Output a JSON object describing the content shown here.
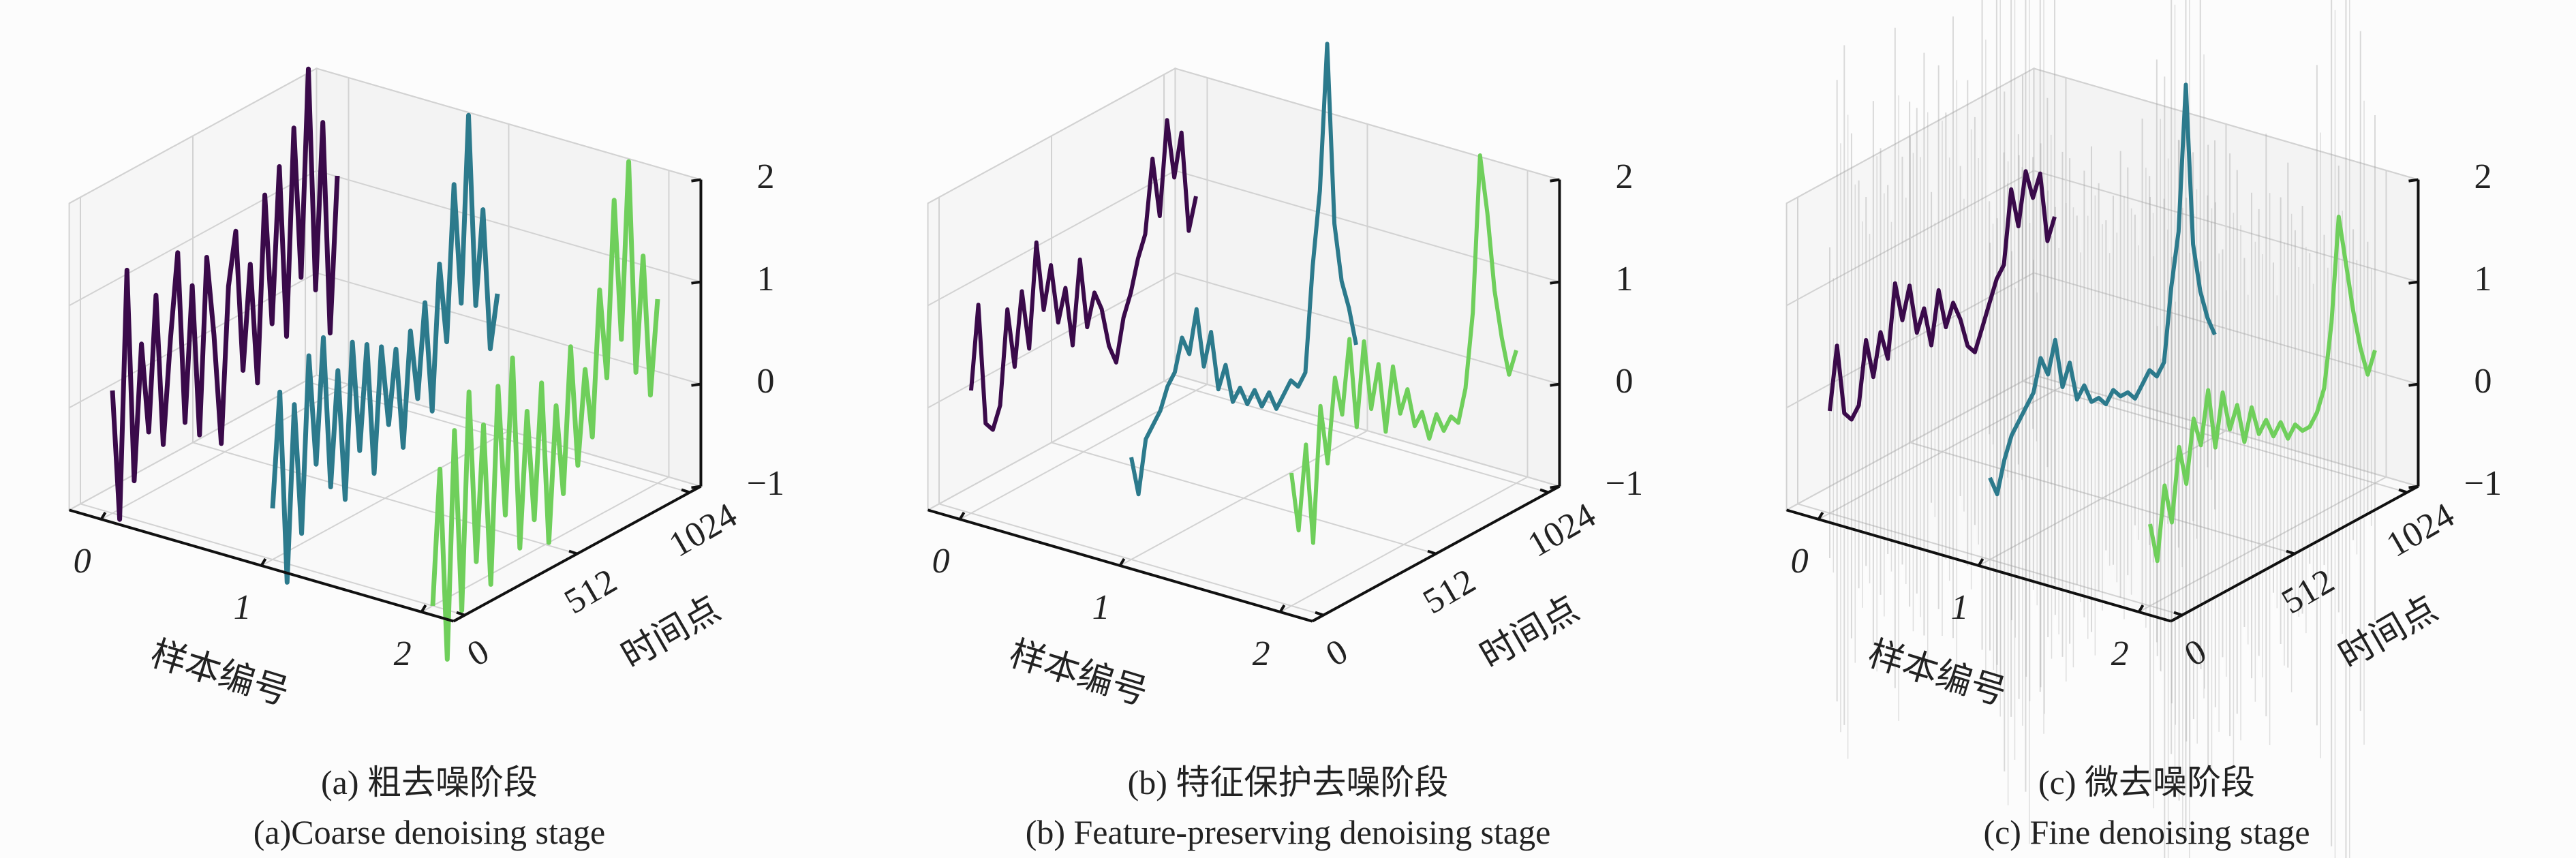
{
  "colors": {
    "sample0": "#3a0a4a",
    "sample1": "#2c7a8c",
    "sample2": "#6fcf5b",
    "noisy_overlay": "#9a9a9a",
    "grid": "#d2d2d2",
    "axis": "#111111"
  },
  "chart_data": [
    {
      "type": "line3d",
      "caption_zh": "(a) 粗去噪阶段",
      "caption_en": "(a)Coarse denoising stage",
      "xlabel": "样本编号",
      "ylabel": "时间点",
      "xticks": [
        "0",
        "1",
        "2"
      ],
      "yticks": [
        "0",
        "512",
        "1024"
      ],
      "zticks": [
        "2",
        "1",
        "0",
        "−1"
      ],
      "xlim": [
        -0.2,
        2.2
      ],
      "ylim": [
        -51,
        1075
      ],
      "zlim": [
        -1,
        2
      ],
      "grid": true,
      "t_range": [
        0,
        1024
      ],
      "series": [
        {
          "sample": 0,
          "values": [
            0.2,
            -1.1,
            1.3,
            -0.8,
            0.5,
            -0.4,
            0.9,
            -0.6,
            0.4,
            1.2,
            -0.5,
            0.8,
            -0.7,
            1.0,
            0.2,
            -0.9,
            0.6,
            1.1,
            -0.3,
            0.7,
            -0.5,
            1.3,
            0.0,
            1.5,
            -0.2,
            1.8,
            0.3,
            2.3,
            0.1,
            1.7,
            -0.4,
            1.1
          ]
        },
        {
          "sample": 1,
          "values": [
            -0.5,
            0.6,
            -1.3,
            0.4,
            -0.9,
            0.8,
            -0.3,
            0.9,
            -0.6,
            0.5,
            -0.8,
            0.7,
            -0.4,
            0.6,
            -0.7,
            0.5,
            -0.3,
            0.4,
            -0.6,
            0.5,
            -0.2,
            0.7,
            -0.4,
            1.0,
            0.2,
            1.7,
            0.5,
            2.3,
            0.4,
            1.3,
            -0.1,
            0.4
          ]
        },
        {
          "sample": 2,
          "values": [
            -1.0,
            0.3,
            -1.6,
            0.6,
            -1.2,
            0.9,
            -0.8,
            0.5,
            -1.1,
            0.8,
            -0.5,
            1.0,
            -0.9,
            0.4,
            -0.7,
            0.6,
            -1.0,
            0.3,
            -0.6,
            0.8,
            -0.4,
            0.5,
            -0.2,
            1.2,
            0.3,
            2.0,
            0.6,
            2.3,
            0.2,
            1.3,
            -0.1,
            0.8
          ]
        }
      ]
    },
    {
      "type": "line3d",
      "caption_zh": "(b) 特征保护去噪阶段",
      "caption_en": "(b) Feature-preserving denoising stage",
      "xlabel": "样本编号",
      "ylabel": "时间点",
      "xticks": [
        "0",
        "1",
        "2"
      ],
      "yticks": [
        "0",
        "512",
        "1024"
      ],
      "zticks": [
        "2",
        "1",
        "0",
        "−1"
      ],
      "xlim": [
        -0.2,
        2.2
      ],
      "ylim": [
        -51,
        1075
      ],
      "zlim": [
        -1,
        2
      ],
      "grid": true,
      "t_range": [
        0,
        1024
      ],
      "series": [
        {
          "sample": 0,
          "values": [
            0.2,
            1.0,
            -0.2,
            -0.3,
            -0.1,
            0.8,
            0.2,
            0.9,
            0.3,
            1.3,
            0.6,
            1.0,
            0.4,
            0.7,
            0.1,
            0.9,
            0.2,
            0.5,
            0.3,
            -0.1,
            -0.3,
            0.1,
            0.3,
            0.6,
            0.8,
            1.5,
            0.9,
            1.8,
            1.2,
            1.6,
            0.6,
            0.9
          ]
        },
        {
          "sample": 1,
          "values": [
            0.0,
            -0.4,
            0.1,
            0.2,
            0.3,
            0.5,
            0.6,
            0.9,
            0.7,
            1.1,
            0.5,
            0.8,
            0.2,
            0.4,
            0.0,
            0.1,
            -0.1,
            0.0,
            -0.2,
            -0.1,
            -0.3,
            -0.2,
            -0.1,
            -0.2,
            -0.1,
            0.9,
            1.6,
            3.0,
            1.2,
            0.6,
            0.3,
            -0.1
          ]
        },
        {
          "sample": 2,
          "values": [
            0.3,
            -0.3,
            0.5,
            -0.5,
            0.8,
            0.2,
            1.0,
            0.6,
            1.3,
            0.4,
            1.2,
            0.5,
            0.9,
            0.2,
            0.8,
            0.3,
            0.5,
            0.1,
            0.2,
            -0.1,
            0.1,
            -0.1,
            0.0,
            -0.1,
            0.2,
            0.9,
            2.4,
            1.8,
            1.0,
            0.5,
            0.1,
            0.3
          ]
        }
      ]
    },
    {
      "type": "line3d",
      "caption_zh": "(c) 微去噪阶段",
      "caption_en": "(c) Fine denoising stage",
      "xlabel": "样本编号",
      "ylabel": "时间点",
      "xticks": [
        "0",
        "1",
        "2"
      ],
      "yticks": [
        "0",
        "512",
        "1024"
      ],
      "zticks": [
        "2",
        "1",
        "0",
        "−1"
      ],
      "xlim": [
        -0.2,
        2.2
      ],
      "ylim": [
        -51,
        1075
      ],
      "zlim": [
        -1,
        2
      ],
      "grid": true,
      "t_range": [
        0,
        1024
      ],
      "series": [
        {
          "sample": 0,
          "values": [
            0.0,
            0.6,
            -0.1,
            -0.2,
            -0.1,
            0.5,
            0.1,
            0.5,
            0.2,
            0.9,
            0.5,
            0.8,
            0.3,
            0.5,
            0.1,
            0.6,
            0.2,
            0.4,
            0.2,
            -0.1,
            -0.2,
            0.0,
            0.2,
            0.4,
            0.5,
            1.2,
            0.8,
            1.3,
            1.0,
            1.2,
            0.5,
            0.7
          ]
        },
        {
          "sample": 1,
          "values": [
            -0.2,
            -0.4,
            -0.1,
            0.1,
            0.2,
            0.3,
            0.4,
            0.7,
            0.5,
            0.8,
            0.3,
            0.5,
            0.1,
            0.2,
            0.0,
            0.0,
            -0.1,
            0.0,
            -0.1,
            -0.1,
            -0.2,
            -0.1,
            0.0,
            -0.1,
            0.0,
            0.7,
            1.2,
            2.6,
            1.0,
            0.5,
            0.2,
            0.0
          ]
        },
        {
          "sample": 2,
          "values": [
            -0.2,
            -0.6,
            0.1,
            -0.3,
            0.4,
            0.0,
            0.6,
            0.3,
            0.8,
            0.2,
            0.7,
            0.3,
            0.5,
            0.1,
            0.4,
            0.1,
            0.2,
            0.0,
            0.1,
            -0.1,
            0.0,
            -0.1,
            -0.1,
            0.0,
            0.2,
            0.8,
            1.8,
            1.3,
            0.8,
            0.4,
            0.1,
            0.3
          ]
        }
      ],
      "noisy_overlay": [
        {
          "sample": 0,
          "values": [
            0.4,
            -2.0,
            2.3,
            -1.4,
            0.9,
            -0.7,
            1.6,
            -1.1,
            0.7,
            2.2,
            -0.9,
            1.4,
            -1.3,
            1.8,
            0.4,
            -1.6,
            1.1,
            2.0,
            -0.5,
            1.3,
            -0.9,
            2.3,
            0.0,
            2.7,
            -0.4,
            3.2,
            0.5,
            4.1,
            0.2,
            3.1,
            -0.7,
            2.0
          ]
        },
        {
          "sample": 1,
          "values": [
            -0.9,
            1.1,
            -2.3,
            0.7,
            -1.6,
            1.4,
            -0.5,
            1.6,
            -1.1,
            0.9,
            -1.4,
            1.3,
            -0.7,
            1.1,
            -1.3,
            0.9,
            -0.5,
            0.7,
            -1.1,
            0.9,
            -0.4,
            1.3,
            -0.7,
            1.8,
            0.4,
            3.1,
            0.9,
            4.1,
            0.7,
            2.3,
            -0.2,
            0.7
          ]
        },
        {
          "sample": 2,
          "values": [
            -1.8,
            0.5,
            -2.9,
            1.1,
            -2.2,
            1.6,
            -1.4,
            0.9,
            -2.0,
            1.4,
            -0.9,
            1.8,
            -1.6,
            0.7,
            -1.3,
            1.1,
            -1.8,
            0.5,
            -1.1,
            1.4,
            -0.7,
            0.9,
            -0.4,
            2.2,
            0.5,
            3.6,
            1.1,
            4.1,
            0.4,
            2.3,
            -0.2,
            1.4
          ]
        }
      ]
    }
  ]
}
